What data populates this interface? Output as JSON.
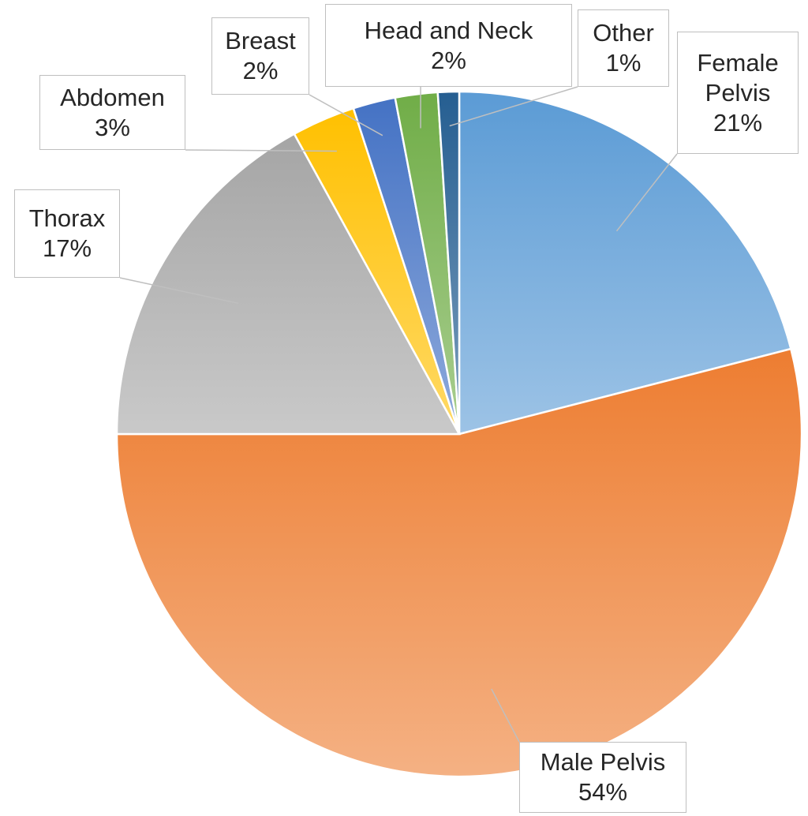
{
  "chart_data": {
    "type": "pie",
    "categories": [
      "Female Pelvis",
      "Male Pelvis",
      "Thorax",
      "Abdomen",
      "Breast",
      "Head and Neck",
      "Other"
    ],
    "values": [
      21,
      54,
      17,
      3,
      2,
      2,
      1
    ],
    "value_labels": [
      "21%",
      "54%",
      "17%",
      "3%",
      "2%",
      "2%",
      "1%"
    ],
    "colors": [
      "#5b9bd5",
      "#ed7d31",
      "#a5a5a5",
      "#ffc000",
      "#4472c4",
      "#70ad47",
      "#255e91"
    ]
  }
}
